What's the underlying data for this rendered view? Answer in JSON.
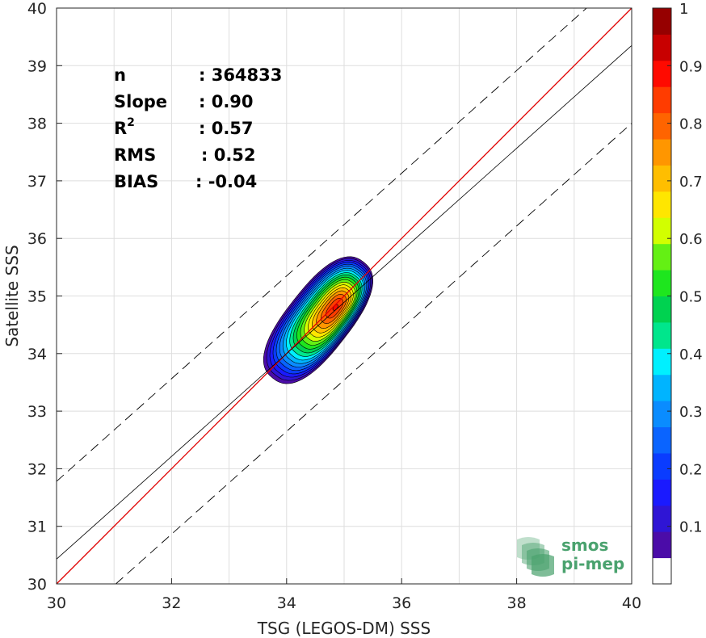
{
  "chart_data": {
    "type": "contour-scatter",
    "xlabel": "TSG (LEGOS-DM) SSS",
    "ylabel": "Satellite SSS",
    "xlim": [
      30,
      40
    ],
    "ylim": [
      30,
      40
    ],
    "xticks": [
      "30",
      "32",
      "34",
      "36",
      "38",
      "40"
    ],
    "yticks": [
      "30",
      "31",
      "32",
      "33",
      "34",
      "35",
      "36",
      "37",
      "38",
      "39",
      "40"
    ],
    "grid": true,
    "stats": [
      {
        "label": "n",
        "sep": ": 364833"
      },
      {
        "label": "Slope",
        "sep": ": 0.90"
      },
      {
        "label": "R",
        "sup": "2",
        "sep": ": 0.57"
      },
      {
        "label": "RMS",
        "sep": ": 0.52"
      },
      {
        "label": "BIAS",
        "sep": ": -0.04"
      }
    ],
    "identity_line": {
      "slope": 1,
      "intercept": 0,
      "color": "#e00000"
    },
    "fit_line": {
      "slope": 0.9,
      "x0": 30,
      "y0": 30.43,
      "x1": 40,
      "y1": 39.35
    },
    "envelope_offset": 1.35,
    "contour_center": [
      34.85,
      34.8
    ],
    "contour_levels": [
      0.05,
      0.1,
      0.15,
      0.2,
      0.25,
      0.3,
      0.35,
      0.4,
      0.45,
      0.5,
      0.55,
      0.6,
      0.65,
      0.7,
      0.75,
      0.8,
      0.85,
      0.9,
      0.95
    ],
    "colorbar": {
      "min": 0,
      "max": 1,
      "ticks": [
        "0.1",
        "0.2",
        "0.3",
        "0.4",
        "0.5",
        "0.6",
        "0.7",
        "0.8",
        "0.9",
        "1"
      ],
      "tick_values": [
        0.1,
        0.2,
        0.3,
        0.4,
        0.5,
        0.6,
        0.7,
        0.8,
        0.9,
        1.0
      ],
      "colors": [
        "#ffffff",
        "#4b0ca8",
        "#2f15d5",
        "#1a1aff",
        "#0a3cff",
        "#0a64ff",
        "#0a8cff",
        "#00b4ff",
        "#00f0ff",
        "#00e68c",
        "#00d250",
        "#1ee61e",
        "#64f014",
        "#d2ff00",
        "#ffe600",
        "#ffbe00",
        "#ff9600",
        "#ff6400",
        "#ff3c00",
        "#ff0a00",
        "#c80000",
        "#960000"
      ]
    }
  },
  "logo": {
    "line1": "smos",
    "line2": "pi-mep",
    "icon": "smos-pi-mep-logo-icon",
    "color": "#4aa26e"
  }
}
